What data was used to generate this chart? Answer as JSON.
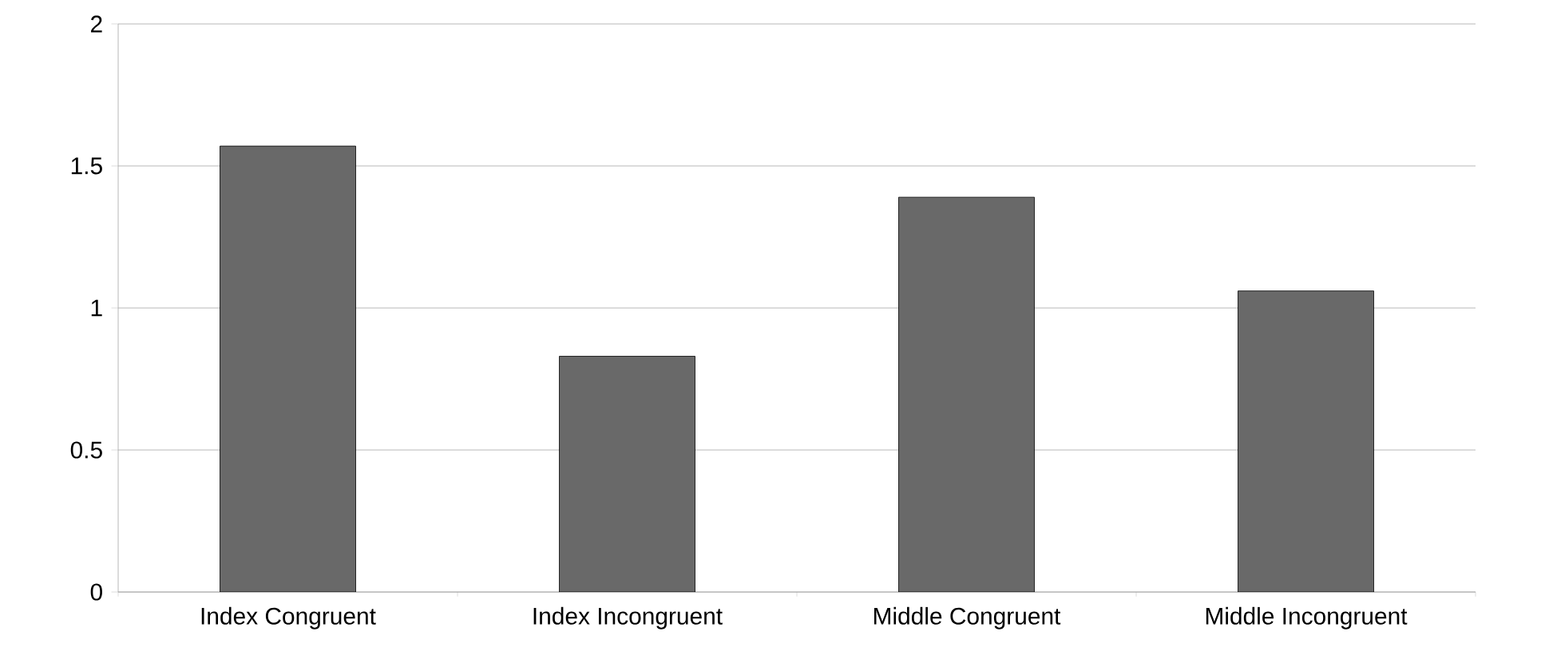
{
  "chart_data": {
    "type": "bar",
    "categories": [
      "Index Congruent",
      "Index Incongruent",
      "Middle Congruent",
      "Middle Incongruent"
    ],
    "values": [
      1.57,
      0.83,
      1.39,
      1.06
    ],
    "color": "#696969",
    "ylim": [
      0,
      2
    ],
    "yticks": [
      0,
      0.5,
      1,
      1.5,
      2
    ],
    "grid": "y"
  }
}
